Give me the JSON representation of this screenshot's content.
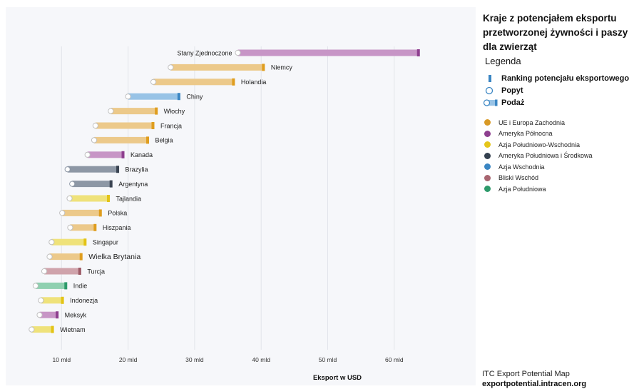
{
  "side_panel": {
    "title": "Kraje z potencjałem eksportu przetworzonej żywności i paszy dla zwierząt",
    "legend_heading": "Legenda",
    "key": {
      "ranking": "Ranking potencjału eksportowego",
      "demand": "Popyt",
      "supply": "Podaż"
    },
    "regions": [
      {
        "label": "UE i Europa Zachodnia",
        "color": "#d99a26"
      },
      {
        "label": "Ameryka Północna",
        "color": "#8e3f8f"
      },
      {
        "label": "Azja Południowo-Wschodnia",
        "color": "#e5c61b"
      },
      {
        "label": "Ameryka Południowa i Środkowa",
        "color": "#34404f"
      },
      {
        "label": "Azja Wschodnia",
        "color": "#3b86c3"
      },
      {
        "label": "Bliski Wschód",
        "color": "#a86570"
      },
      {
        "label": "Azja Południowa",
        "color": "#2e9a6b"
      }
    ]
  },
  "footer": {
    "line1": "ITC Export Potential Map",
    "line2": "exportpotential.intracen.org"
  },
  "chart_data": {
    "type": "bar",
    "xlabel": "Eksport w USD",
    "xlim": [
      0,
      67
    ],
    "xticks": [
      10,
      20,
      30,
      40,
      50,
      60
    ],
    "xtick_labels": [
      "10 mld",
      "20 mld",
      "30 mld",
      "40 mld",
      "50 mld",
      "60 mld"
    ],
    "grid": true,
    "region_colors": {
      "eu": {
        "light": "#ecc98a",
        "dark": "#df9d1e"
      },
      "na": {
        "light": "#c795c6",
        "dark": "#8e3f8f"
      },
      "sea": {
        "light": "#efe27a",
        "dark": "#e3c316"
      },
      "sa": {
        "light": "#8d97a5",
        "dark": "#3a4452"
      },
      "ea": {
        "light": "#98c3e6",
        "dark": "#3b86c3"
      },
      "me": {
        "light": "#cfa3ab",
        "dark": "#9c5a66"
      },
      "soa": {
        "light": "#8fd0b0",
        "dark": "#2e9a6b"
      }
    },
    "countries": [
      {
        "name": "Stany Zjednoczone",
        "region": "na",
        "demand": 36.5,
        "potential": 63.8
      },
      {
        "name": "Niemcy",
        "region": "eu",
        "demand": 26.4,
        "potential": 40.5
      },
      {
        "name": "Holandia",
        "region": "eu",
        "demand": 23.8,
        "potential": 36.0
      },
      {
        "name": "Chiny",
        "region": "ea",
        "demand": 20.0,
        "potential": 27.8
      },
      {
        "name": "Włochy",
        "region": "eu",
        "demand": 17.4,
        "potential": 24.4
      },
      {
        "name": "Francja",
        "region": "eu",
        "demand": 15.1,
        "potential": 23.9
      },
      {
        "name": "Belgia",
        "region": "eu",
        "demand": 14.9,
        "potential": 23.1
      },
      {
        "name": "Kanada",
        "region": "na",
        "demand": 13.9,
        "potential": 19.4
      },
      {
        "name": "Brazylia",
        "region": "sa",
        "demand": 10.9,
        "potential": 18.6
      },
      {
        "name": "Argentyna",
        "region": "sa",
        "demand": 11.6,
        "potential": 17.6
      },
      {
        "name": "Tajlandia",
        "region": "sea",
        "demand": 11.2,
        "potential": 17.2
      },
      {
        "name": "Polska",
        "region": "eu",
        "demand": 10.1,
        "potential": 16.0
      },
      {
        "name": "Hiszpania",
        "region": "eu",
        "demand": 11.3,
        "potential": 15.2
      },
      {
        "name": "Singapur",
        "region": "sea",
        "demand": 8.5,
        "potential": 13.7
      },
      {
        "name": "Wielka Brytania",
        "region": "eu",
        "demand": 8.2,
        "potential": 13.1
      },
      {
        "name": "Turcja",
        "region": "me",
        "demand": 7.4,
        "potential": 12.9
      },
      {
        "name": "Indie",
        "region": "soa",
        "demand": 6.1,
        "potential": 10.8
      },
      {
        "name": "Indonezja",
        "region": "sea",
        "demand": 6.9,
        "potential": 10.3
      },
      {
        "name": "Meksyk",
        "region": "na",
        "demand": 6.7,
        "potential": 9.5
      },
      {
        "name": "Wietnam",
        "region": "sea",
        "demand": 5.5,
        "potential": 8.8
      }
    ]
  }
}
